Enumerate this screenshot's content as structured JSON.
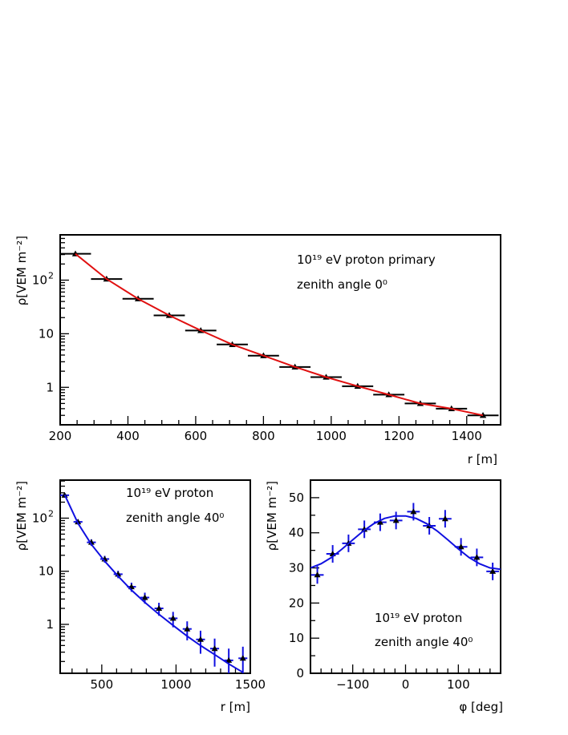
{
  "chart_data": [
    {
      "type": "scatter",
      "xlabel": "r [m]",
      "ylabel": "ρ[VEM m⁻²]",
      "scale_y": "log",
      "xlim": [
        200,
        1500
      ],
      "ylim": [
        0.2,
        700
      ],
      "x_ticks": [
        200,
        400,
        600,
        800,
        1000,
        1200,
        1400
      ],
      "y_ticks": [
        "1",
        "10",
        "10²"
      ],
      "annotations": [
        "10¹⁹ eV proton primary",
        "zenith angle  0⁰"
      ],
      "grid": false,
      "series": [
        {
          "kind": "points",
          "color": "#000000",
          "x": [
            245,
            337,
            430,
            522,
            615,
            708,
            800,
            893,
            985,
            1078,
            1170,
            1263,
            1355,
            1448
          ],
          "y": [
            310,
            105,
            45,
            22,
            11.5,
            6.3,
            3.9,
            2.4,
            1.55,
            1.05,
            0.73,
            0.5,
            0.4,
            0.3
          ],
          "x_err": [
            46,
            46,
            46,
            46,
            46,
            46,
            46,
            46,
            46,
            46,
            46,
            46,
            46,
            46
          ]
        },
        {
          "kind": "line",
          "color": "#e01010",
          "x": [
            245,
            337,
            430,
            522,
            615,
            708,
            800,
            893,
            985,
            1078,
            1170,
            1263,
            1355,
            1448
          ],
          "y": [
            310,
            105,
            45,
            22,
            11.5,
            6.3,
            3.9,
            2.4,
            1.55,
            1.05,
            0.73,
            0.5,
            0.4,
            0.3
          ]
        }
      ]
    },
    {
      "type": "scatter",
      "xlabel": "r [m]",
      "ylabel": "ρ[VEM m⁻²]",
      "scale_y": "log",
      "xlim": [
        220,
        1500
      ],
      "ylim": [
        0.12,
        520
      ],
      "x_ticks": [
        500,
        1000,
        1500
      ],
      "y_ticks": [
        "1",
        "10",
        "10²"
      ],
      "annotations": [
        "10¹⁹ eV proton",
        "zenith angle  40⁰"
      ],
      "grid": false,
      "series": [
        {
          "kind": "points",
          "color": "#000000",
          "errcolor": "#1010e0",
          "x": [
            250,
            340,
            430,
            520,
            610,
            700,
            790,
            885,
            980,
            1075,
            1165,
            1260,
            1355,
            1450
          ],
          "y": [
            270,
            85,
            35,
            17,
            8.8,
            5.1,
            3.2,
            2.0,
            1.3,
            0.82,
            0.52,
            0.35,
            0.21,
            0.23
          ],
          "y_err_lo": [
            25,
            9,
            5,
            2.5,
            1.4,
            1.0,
            0.75,
            0.55,
            0.42,
            0.32,
            0.24,
            0.19,
            0.11,
            0.12
          ],
          "y_err_hi": [
            25,
            9,
            5,
            2.5,
            1.4,
            1.0,
            0.75,
            0.55,
            0.42,
            0.32,
            0.24,
            0.19,
            0.14,
            0.15
          ],
          "x_err": [
            30,
            30,
            30,
            30,
            30,
            30,
            30,
            30,
            30,
            30,
            30,
            30,
            30,
            30
          ]
        },
        {
          "kind": "line",
          "color": "#1010e0",
          "x": [
            250,
            340,
            430,
            520,
            610,
            700,
            790,
            885,
            980,
            1075,
            1165,
            1260,
            1355,
            1450
          ],
          "y": [
            275,
            80,
            32,
            15.5,
            8.1,
            4.4,
            2.6,
            1.55,
            0.96,
            0.6,
            0.4,
            0.27,
            0.18,
            0.125
          ]
        }
      ]
    },
    {
      "type": "scatter",
      "xlabel": "φ [deg]",
      "ylabel": "ρ[VEM m⁻²]",
      "xlim": [
        -180,
        180
      ],
      "ylim": [
        0,
        55
      ],
      "x_ticks": [
        -100,
        0,
        100
      ],
      "y_ticks": [
        0,
        10,
        20,
        30,
        40,
        50
      ],
      "annotations": [
        "10¹⁹ eV proton",
        "zenith angle  40⁰"
      ],
      "grid": false,
      "series": [
        {
          "kind": "points",
          "color": "#000000",
          "errcolor": "#1010e0",
          "x": [
            -167,
            -138,
            -108,
            -78,
            -48,
            -18,
            15,
            45,
            75,
            105,
            135,
            165
          ],
          "y": [
            28,
            34,
            37,
            41,
            43,
            43.5,
            46,
            42,
            44,
            36,
            33,
            29
          ],
          "y_err": [
            2.5,
            2.5,
            2.5,
            2.5,
            2.5,
            2.5,
            2.5,
            2.5,
            2.5,
            2.5,
            2.5,
            2.5
          ],
          "x_err": [
            12,
            12,
            12,
            12,
            12,
            12,
            12,
            12,
            12,
            12,
            12,
            12
          ]
        },
        {
          "kind": "line",
          "color": "#1010e0",
          "x": [
            -180,
            -160,
            -140,
            -120,
            -100,
            -80,
            -60,
            -40,
            -20,
            0,
            20,
            40,
            60,
            80,
            100,
            120,
            140,
            160,
            180
          ],
          "y": [
            30,
            31.2,
            33,
            35.4,
            38,
            40.5,
            42.6,
            44.1,
            44.8,
            44.8,
            44.1,
            42.6,
            40.5,
            38,
            35.4,
            33,
            31.2,
            30,
            29.6
          ]
        }
      ]
    }
  ]
}
